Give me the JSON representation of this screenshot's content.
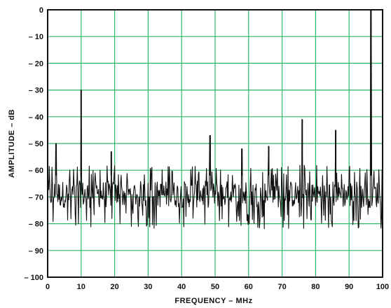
{
  "chart_data": {
    "type": "line",
    "title": "",
    "xlabel": "FREQUENCY – MHz",
    "ylabel": "AMPLITUDE – dB",
    "xlim": [
      0,
      100
    ],
    "ylim": [
      -100,
      0
    ],
    "grid": true,
    "x_ticks": [
      "0",
      "10",
      "20",
      "30",
      "40",
      "50",
      "60",
      "70",
      "80",
      "90",
      "100"
    ],
    "y_ticks": [
      "0",
      "– 10",
      "– 20",
      "– 30",
      "– 40",
      "– 50",
      "– 60",
      "– 70",
      "– 80",
      "– 90",
      "– 100"
    ],
    "noise_floor_db": [
      -80,
      -60
    ],
    "peaks": [
      {
        "x": 2.5,
        "y": -50
      },
      {
        "x": 10,
        "y": -30
      },
      {
        "x": 19,
        "y": -53
      },
      {
        "x": 48.5,
        "y": -47
      },
      {
        "x": 58,
        "y": -52
      },
      {
        "x": 66,
        "y": -51
      },
      {
        "x": 76,
        "y": -41
      },
      {
        "x": 86,
        "y": -45
      },
      {
        "x": 96.5,
        "y": 0
      }
    ],
    "colors": {
      "grid": "#2fb56a",
      "frame": "#111111",
      "trace": "#111111",
      "background": "#ffffff"
    }
  }
}
